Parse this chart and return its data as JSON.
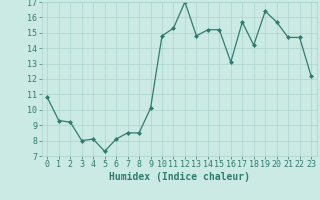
{
  "x": [
    0,
    1,
    2,
    3,
    4,
    5,
    6,
    7,
    8,
    9,
    10,
    11,
    12,
    13,
    14,
    15,
    16,
    17,
    18,
    19,
    20,
    21,
    22,
    23
  ],
  "y": [
    10.8,
    9.3,
    9.2,
    8.0,
    8.1,
    7.3,
    8.1,
    8.5,
    8.5,
    10.1,
    14.8,
    15.3,
    17.0,
    14.8,
    15.2,
    15.2,
    13.1,
    15.7,
    14.2,
    16.4,
    15.7,
    14.7,
    14.7,
    12.2
  ],
  "xlabel": "Humidex (Indice chaleur)",
  "ylim": [
    7,
    17
  ],
  "xlim": [
    -0.5,
    23.5
  ],
  "yticks": [
    7,
    8,
    9,
    10,
    11,
    12,
    13,
    14,
    15,
    16,
    17
  ],
  "xticks": [
    0,
    1,
    2,
    3,
    4,
    5,
    6,
    7,
    8,
    9,
    10,
    11,
    12,
    13,
    14,
    15,
    16,
    17,
    18,
    19,
    20,
    21,
    22,
    23
  ],
  "line_color": "#2e7d6e",
  "marker_color": "#2e7d6e",
  "bg_color": "#cceae4",
  "grid_color": "#aad4cc",
  "text_color": "#2e7d6e",
  "xlabel_fontsize": 7,
  "tick_fontsize": 6
}
